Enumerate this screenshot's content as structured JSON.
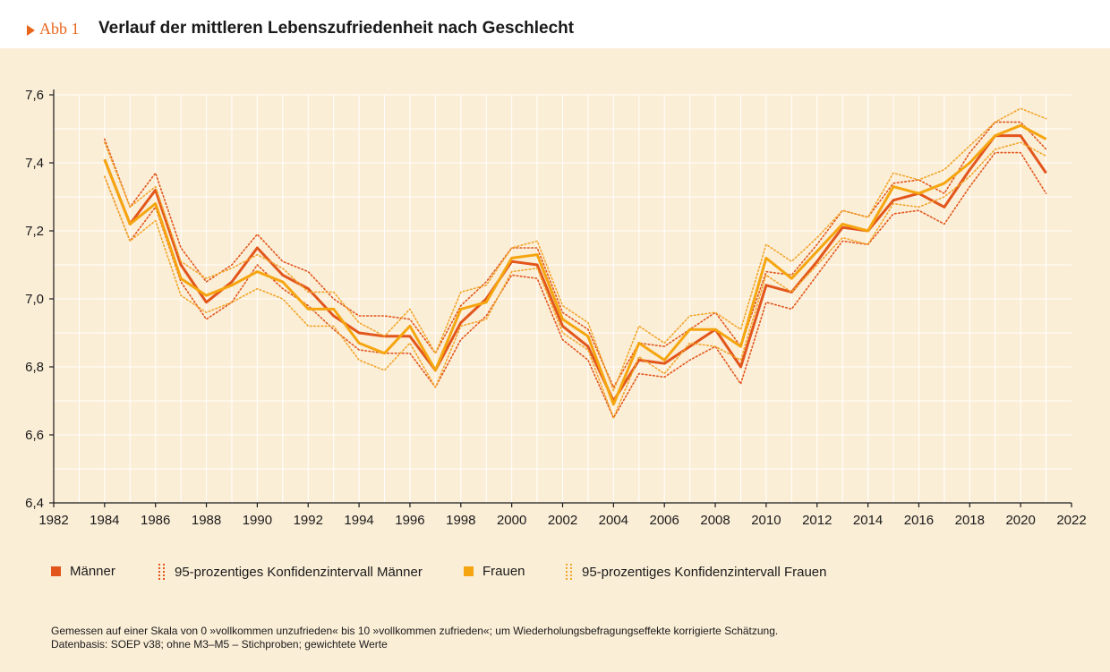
{
  "header": {
    "fig_label": "Abb 1",
    "title": "Verlauf der mittleren Lebenszufriedenheit nach Geschlecht"
  },
  "colors": {
    "maenner": "#e2561c",
    "frauen": "#f5a50f",
    "maenner_ci": "#e2561c",
    "frauen_ci": "#f2a52a",
    "grid": "#ffffff",
    "axis": "#1a1a1a"
  },
  "chart_data": {
    "type": "line",
    "title": "Verlauf der mittleren Lebenszufriedenheit nach Geschlecht",
    "xlabel": "",
    "ylabel": "",
    "xlim": [
      1982,
      2022
    ],
    "ylim": [
      6.4,
      7.6
    ],
    "x_ticks": [
      "1982",
      "1984",
      "1986",
      "1988",
      "1990",
      "1992",
      "1994",
      "1996",
      "1998",
      "2000",
      "2002",
      "2004",
      "2006",
      "2008",
      "2010",
      "2012",
      "2014",
      "2016",
      "2018",
      "2020",
      "2022"
    ],
    "y_ticks": [
      "6,4",
      "6,6",
      "6,8",
      "7,0",
      "7,2",
      "7,4",
      "7,6"
    ],
    "grid": true,
    "x": [
      1984,
      1985,
      1986,
      1987,
      1988,
      1989,
      1990,
      1991,
      1992,
      1993,
      1994,
      1995,
      1996,
      1997,
      1998,
      1999,
      2000,
      2001,
      2002,
      2003,
      2004,
      2005,
      2006,
      2007,
      2008,
      2009,
      2010,
      2011,
      2012,
      2013,
      2014,
      2015,
      2016,
      2017,
      2018,
      2019,
      2020,
      2021
    ],
    "series": [
      {
        "name": "Männer",
        "style": "solid",
        "values": [
          7.41,
          7.22,
          7.32,
          7.1,
          6.99,
          7.05,
          7.15,
          7.07,
          7.03,
          6.95,
          6.9,
          6.89,
          6.89,
          6.79,
          6.93,
          7.0,
          7.11,
          7.1,
          6.92,
          6.86,
          6.7,
          6.82,
          6.81,
          6.86,
          6.91,
          6.8,
          7.04,
          7.02,
          7.11,
          7.21,
          7.2,
          7.29,
          7.31,
          7.27,
          7.38,
          7.48,
          7.48,
          7.37
        ]
      },
      {
        "name": "95-prozentiges Konfidenzintervall Männer (oben)",
        "style": "dotted",
        "values": [
          7.47,
          7.27,
          7.37,
          7.15,
          7.05,
          7.1,
          7.19,
          7.11,
          7.08,
          7.0,
          6.95,
          6.95,
          6.94,
          6.84,
          6.98,
          7.05,
          7.15,
          7.15,
          6.96,
          6.91,
          6.74,
          6.87,
          6.86,
          6.91,
          6.96,
          6.86,
          7.08,
          7.07,
          7.16,
          7.26,
          7.24,
          7.34,
          7.35,
          7.31,
          7.43,
          7.52,
          7.52,
          7.44
        ]
      },
      {
        "name": "95-prozentiges Konfidenzintervall Männer (unten)",
        "style": "dotted",
        "values": [
          7.36,
          7.17,
          7.27,
          7.05,
          6.94,
          6.99,
          7.1,
          7.03,
          6.98,
          6.91,
          6.85,
          6.84,
          6.84,
          6.74,
          6.88,
          6.95,
          7.07,
          7.06,
          6.88,
          6.82,
          6.65,
          6.78,
          6.77,
          6.82,
          6.86,
          6.75,
          6.99,
          6.97,
          7.07,
          7.17,
          7.16,
          7.25,
          7.26,
          7.22,
          7.33,
          7.43,
          7.43,
          7.31
        ]
      },
      {
        "name": "Frauen",
        "style": "solid",
        "values": [
          7.41,
          7.22,
          7.28,
          7.06,
          7.01,
          7.04,
          7.08,
          7.05,
          6.97,
          6.97,
          6.87,
          6.84,
          6.92,
          6.79,
          6.97,
          6.99,
          7.12,
          7.13,
          6.94,
          6.89,
          6.69,
          6.87,
          6.82,
          6.91,
          6.91,
          6.86,
          7.12,
          7.06,
          7.14,
          7.22,
          7.2,
          7.33,
          7.31,
          7.34,
          7.4,
          7.48,
          7.51,
          7.47
        ]
      },
      {
        "name": "95-prozentiges Konfidenzintervall Frauen (oben)",
        "style": "dotted",
        "values": [
          7.46,
          7.27,
          7.33,
          7.11,
          7.06,
          7.09,
          7.13,
          7.09,
          7.02,
          7.02,
          6.93,
          6.89,
          6.97,
          6.84,
          7.02,
          7.04,
          7.15,
          7.17,
          6.98,
          6.93,
          6.73,
          6.92,
          6.87,
          6.95,
          6.96,
          6.91,
          7.16,
          7.11,
          7.18,
          7.26,
          7.24,
          7.37,
          7.35,
          7.38,
          7.45,
          7.52,
          7.56,
          7.53
        ]
      },
      {
        "name": "95-prozentiges Konfidenzintervall Frauen (unten)",
        "style": "dotted",
        "values": [
          7.36,
          7.17,
          7.23,
          7.01,
          6.96,
          6.99,
          7.03,
          7.0,
          6.92,
          6.92,
          6.82,
          6.79,
          6.87,
          6.74,
          6.92,
          6.94,
          7.08,
          7.09,
          6.9,
          6.85,
          6.65,
          6.83,
          6.78,
          6.87,
          6.86,
          6.82,
          7.07,
          7.02,
          7.1,
          7.18,
          7.16,
          7.28,
          7.27,
          7.3,
          7.36,
          7.44,
          7.46,
          7.42
        ]
      }
    ]
  },
  "legend": {
    "maenner": "Männer",
    "maenner_ci": "95-prozentiges Konfidenzintervall Männer",
    "frauen": "Frauen",
    "frauen_ci": "95-prozentiges Konfidenzintervall Frauen"
  },
  "notes": {
    "line1": "Gemessen auf einer Skala von 0 »vollkommen unzufrieden« bis 10 »vollkommen zufrieden«; um Wiederholungsbefragungseffekte korrigierte Schätzung.",
    "line2": "Datenbasis: SOEP v38; ohne M3–M5 – Stichproben; gewichtete Werte"
  }
}
